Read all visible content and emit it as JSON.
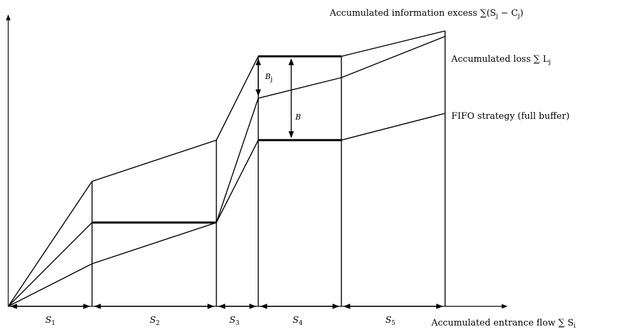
{
  "labels": {
    "excess_text": "Accumulated information excess ",
    "excess_formula": "∑(S",
    "excess_sub1": "j",
    "excess_mid": " − C",
    "excess_sub2": "j",
    "excess_close": ")",
    "loss_text": "Accumulated loss ∑ L",
    "loss_sub": "j",
    "fifo": "FIFO strategy (full buffer)",
    "x_axis_text": "Accumulated entrance flow ∑ S",
    "x_axis_sub": "i",
    "b": "B",
    "bj_main": "B",
    "bj_sub": "j"
  },
  "segments": [
    {
      "base": "S",
      "sub": "1"
    },
    {
      "base": "S",
      "sub": "2"
    },
    {
      "base": "S",
      "sub": "3"
    },
    {
      "base": "S",
      "sub": "4"
    },
    {
      "base": "S",
      "sub": "5"
    }
  ],
  "colors": {
    "line": "#000000",
    "background": "#ffffff"
  }
}
